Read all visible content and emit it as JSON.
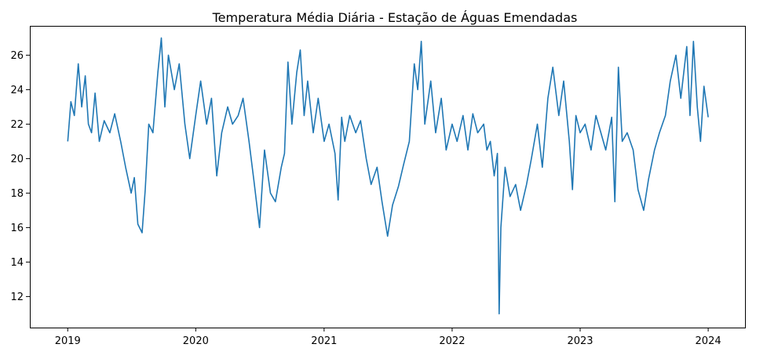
{
  "chart_data": {
    "type": "line",
    "title": "Temperatura Média Diária - Estação de Águas Emendadas",
    "xlabel": "",
    "ylabel": "",
    "x_ticks": [
      "2019",
      "2020",
      "2021",
      "2022",
      "2023",
      "2024"
    ],
    "y_ticks": [
      "12",
      "14",
      "16",
      "18",
      "20",
      "22",
      "24",
      "26"
    ],
    "xlim": [
      "2018-09-15",
      "2024-04-15"
    ],
    "ylim": [
      10.2,
      27.7
    ],
    "grid": false,
    "legend": "none",
    "series": [
      {
        "color": "#1f77b4",
        "points": [
          [
            "2019-01-01",
            21.0
          ],
          [
            "2019-01-10",
            23.3
          ],
          [
            "2019-01-20",
            22.5
          ],
          [
            "2019-01-31",
            25.5
          ],
          [
            "2019-02-10",
            23.0
          ],
          [
            "2019-02-20",
            24.8
          ],
          [
            "2019-03-01",
            22.0
          ],
          [
            "2019-03-10",
            21.5
          ],
          [
            "2019-03-20",
            23.8
          ],
          [
            "2019-04-01",
            21.0
          ],
          [
            "2019-04-15",
            22.2
          ],
          [
            "2019-05-01",
            21.5
          ],
          [
            "2019-05-15",
            22.6
          ],
          [
            "2019-06-01",
            21.0
          ],
          [
            "2019-06-15",
            19.5
          ],
          [
            "2019-07-01",
            18.0
          ],
          [
            "2019-07-10",
            18.9
          ],
          [
            "2019-07-20",
            16.2
          ],
          [
            "2019-08-01",
            15.7
          ],
          [
            "2019-08-10",
            18.2
          ],
          [
            "2019-08-20",
            22.0
          ],
          [
            "2019-09-01",
            21.5
          ],
          [
            "2019-09-15",
            25.0
          ],
          [
            "2019-09-25",
            27.0
          ],
          [
            "2019-10-05",
            23.0
          ],
          [
            "2019-10-15",
            26.0
          ],
          [
            "2019-11-01",
            24.0
          ],
          [
            "2019-11-15",
            25.5
          ],
          [
            "2019-12-01",
            22.0
          ],
          [
            "2019-12-15",
            20.0
          ],
          [
            "2020-01-01",
            22.5
          ],
          [
            "2020-01-15",
            24.5
          ],
          [
            "2020-02-01",
            22.0
          ],
          [
            "2020-02-15",
            23.5
          ],
          [
            "2020-03-01",
            19.0
          ],
          [
            "2020-03-15",
            21.5
          ],
          [
            "2020-04-01",
            23.0
          ],
          [
            "2020-04-15",
            22.0
          ],
          [
            "2020-05-01",
            22.5
          ],
          [
            "2020-05-15",
            23.5
          ],
          [
            "2020-06-01",
            21.0
          ],
          [
            "2020-06-15",
            18.7
          ],
          [
            "2020-07-01",
            16.0
          ],
          [
            "2020-07-15",
            20.5
          ],
          [
            "2020-08-01",
            18.0
          ],
          [
            "2020-08-15",
            17.5
          ],
          [
            "2020-09-01",
            19.5
          ],
          [
            "2020-09-10",
            20.3
          ],
          [
            "2020-09-20",
            25.6
          ],
          [
            "2020-10-01",
            22.0
          ],
          [
            "2020-10-15",
            25.0
          ],
          [
            "2020-10-25",
            26.3
          ],
          [
            "2020-11-05",
            22.5
          ],
          [
            "2020-11-15",
            24.5
          ],
          [
            "2020-12-01",
            21.5
          ],
          [
            "2020-12-15",
            23.5
          ],
          [
            "2021-01-01",
            21.0
          ],
          [
            "2021-01-15",
            22.0
          ],
          [
            "2021-02-01",
            20.3
          ],
          [
            "2021-02-10",
            17.6
          ],
          [
            "2021-02-20",
            22.4
          ],
          [
            "2021-03-01",
            21.0
          ],
          [
            "2021-03-15",
            22.5
          ],
          [
            "2021-04-01",
            21.5
          ],
          [
            "2021-04-15",
            22.2
          ],
          [
            "2021-05-01",
            20.0
          ],
          [
            "2021-05-15",
            18.5
          ],
          [
            "2021-06-01",
            19.5
          ],
          [
            "2021-06-15",
            17.5
          ],
          [
            "2021-07-01",
            15.5
          ],
          [
            "2021-07-15",
            17.3
          ],
          [
            "2021-08-01",
            18.4
          ],
          [
            "2021-08-15",
            19.6
          ],
          [
            "2021-09-01",
            21.0
          ],
          [
            "2021-09-15",
            25.5
          ],
          [
            "2021-09-25",
            24.0
          ],
          [
            "2021-10-05",
            26.8
          ],
          [
            "2021-10-15",
            22.0
          ],
          [
            "2021-11-01",
            24.5
          ],
          [
            "2021-11-15",
            21.5
          ],
          [
            "2021-12-01",
            23.5
          ],
          [
            "2021-12-15",
            20.5
          ],
          [
            "2022-01-01",
            22.0
          ],
          [
            "2022-01-15",
            21.0
          ],
          [
            "2022-02-01",
            22.5
          ],
          [
            "2022-02-15",
            20.5
          ],
          [
            "2022-03-01",
            22.6
          ],
          [
            "2022-03-15",
            21.5
          ],
          [
            "2022-04-01",
            22.0
          ],
          [
            "2022-04-10",
            20.5
          ],
          [
            "2022-04-20",
            21.0
          ],
          [
            "2022-05-01",
            19.0
          ],
          [
            "2022-05-10",
            20.3
          ],
          [
            "2022-05-15",
            11.0
          ],
          [
            "2022-05-20",
            16.0
          ],
          [
            "2022-06-01",
            19.5
          ],
          [
            "2022-06-15",
            17.8
          ],
          [
            "2022-07-01",
            18.5
          ],
          [
            "2022-07-15",
            17.0
          ],
          [
            "2022-08-01",
            18.5
          ],
          [
            "2022-08-15",
            20.0
          ],
          [
            "2022-09-01",
            22.0
          ],
          [
            "2022-09-15",
            19.5
          ],
          [
            "2022-10-01",
            23.5
          ],
          [
            "2022-10-15",
            25.3
          ],
          [
            "2022-11-01",
            22.5
          ],
          [
            "2022-11-15",
            24.5
          ],
          [
            "2022-12-01",
            21.0
          ],
          [
            "2022-12-10",
            18.2
          ],
          [
            "2022-12-20",
            22.5
          ],
          [
            "2023-01-01",
            21.5
          ],
          [
            "2023-01-15",
            22.0
          ],
          [
            "2023-02-01",
            20.5
          ],
          [
            "2023-02-15",
            22.5
          ],
          [
            "2023-03-01",
            21.5
          ],
          [
            "2023-03-15",
            20.5
          ],
          [
            "2023-04-01",
            22.4
          ],
          [
            "2023-04-10",
            17.5
          ],
          [
            "2023-04-20",
            25.3
          ],
          [
            "2023-05-01",
            21.0
          ],
          [
            "2023-05-15",
            21.5
          ],
          [
            "2023-06-01",
            20.5
          ],
          [
            "2023-06-15",
            18.2
          ],
          [
            "2023-07-01",
            17.0
          ],
          [
            "2023-07-15",
            18.8
          ],
          [
            "2023-08-01",
            20.5
          ],
          [
            "2023-08-15",
            21.5
          ],
          [
            "2023-09-01",
            22.5
          ],
          [
            "2023-09-15",
            24.5
          ],
          [
            "2023-10-01",
            26.0
          ],
          [
            "2023-10-15",
            23.5
          ],
          [
            "2023-11-01",
            26.5
          ],
          [
            "2023-11-10",
            22.5
          ],
          [
            "2023-11-20",
            26.8
          ],
          [
            "2023-12-01",
            23.0
          ],
          [
            "2023-12-10",
            21.0
          ],
          [
            "2023-12-20",
            24.2
          ],
          [
            "2024-01-01",
            22.4
          ]
        ]
      }
    ]
  }
}
